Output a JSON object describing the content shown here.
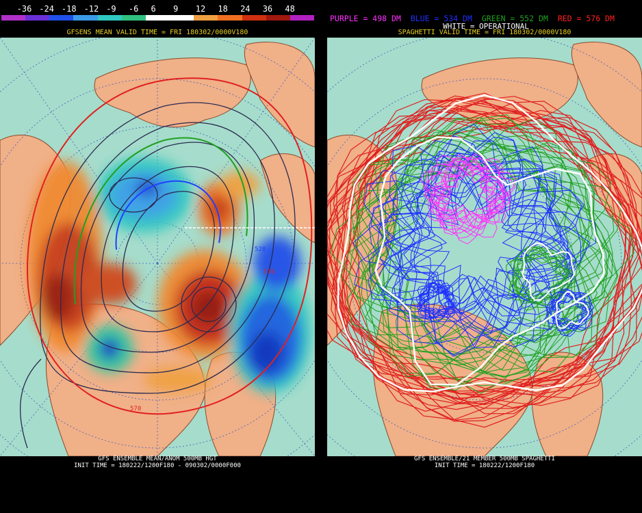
{
  "colorbar": {
    "ticks": [
      "-36",
      "-24",
      "-18",
      "-12",
      "-9",
      "-6",
      "6",
      "9",
      "12",
      "18",
      "24",
      "36",
      "48"
    ],
    "colors": [
      "#b030c8",
      "#6a30d8",
      "#2050e8",
      "#3a9ae8",
      "#30c8c0",
      "#30c080",
      "#ffffff",
      "#ffffff",
      "#f0a040",
      "#f07020",
      "#d03010",
      "#a01810",
      "#b020c0"
    ]
  },
  "left_panel": {
    "header": "GFSENS MEAN VALID TIME = FRI 180302/0000V180",
    "footer_line1": "GFS ENSEMBLE MEAN/ANOM 500MB HGT",
    "footer_line2": "INIT TIME = 180222/1200F180 - 090302/0000F000",
    "contour_labels": [
      "528",
      "570",
      "576"
    ]
  },
  "right_panel": {
    "legend": [
      {
        "text": "PURPLE = 498 DM",
        "color": "#ff30ff"
      },
      {
        "text": "BLUE = 534 DM",
        "color": "#2030ff"
      },
      {
        "text": "GREEN = 552 DM",
        "color": "#20a020"
      },
      {
        "text": "RED = 576 DM",
        "color": "#ff2020"
      }
    ],
    "operational": "WHITE = OPERATIONAL",
    "header": "SPAGHETTI VALID TIME = FRI 180302/0000V180",
    "footer_line1": "GFS ENSEMBLE/21 MEMBER 500MB SPAGHETTI",
    "footer_line2": "INIT TIME = 180222/1200F180"
  }
}
